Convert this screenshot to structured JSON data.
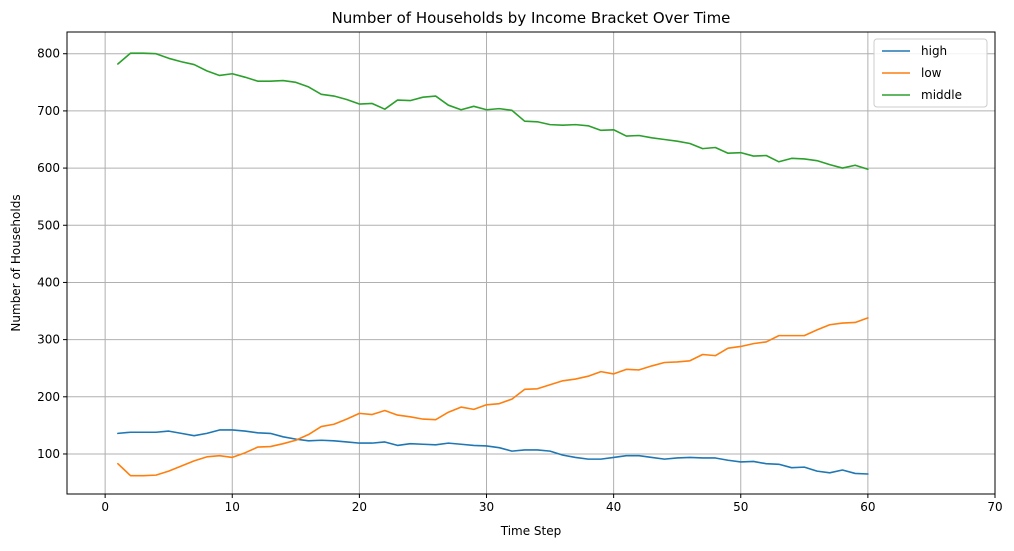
{
  "chart_data": {
    "type": "line",
    "title": "Number of Households by Income Bracket Over Time",
    "xlabel": "Time Step",
    "ylabel": "Number of Households",
    "xlim": [
      -3,
      70
    ],
    "ylim": [
      30,
      838
    ],
    "xticks": [
      0,
      10,
      20,
      30,
      40,
      50,
      60,
      70
    ],
    "yticks": [
      100,
      200,
      300,
      400,
      500,
      600,
      700,
      800
    ],
    "grid": true,
    "legend": "top-right",
    "x": [
      1,
      2,
      3,
      4,
      5,
      6,
      7,
      8,
      9,
      10,
      11,
      12,
      13,
      14,
      15,
      16,
      17,
      18,
      19,
      20,
      21,
      22,
      23,
      24,
      25,
      26,
      27,
      28,
      29,
      30,
      31,
      32,
      33,
      34,
      35,
      36,
      37,
      38,
      39,
      40,
      41,
      42,
      43,
      44,
      45,
      46,
      47,
      48,
      49,
      50,
      51,
      52,
      53,
      54,
      55,
      56,
      57,
      58,
      59,
      60
    ],
    "series": [
      {
        "name": "high",
        "color": "#1f77b4",
        "values": [
          136,
          138,
          138,
          138,
          140,
          136,
          132,
          136,
          142,
          142,
          140,
          137,
          136,
          130,
          126,
          123,
          124,
          123,
          121,
          119,
          119,
          121,
          115,
          118,
          117,
          116,
          119,
          117,
          115,
          114,
          111,
          105,
          107,
          107,
          105,
          98,
          94,
          91,
          91,
          94,
          97,
          97,
          94,
          91,
          93,
          94,
          93,
          93,
          89,
          86,
          87,
          83,
          82,
          76,
          77,
          70,
          67,
          72,
          66,
          65
        ]
      },
      {
        "name": "low",
        "color": "#ff7f0e",
        "values": [
          83,
          62,
          62,
          63,
          70,
          79,
          88,
          95,
          97,
          94,
          102,
          112,
          113,
          118,
          124,
          134,
          148,
          152,
          161,
          171,
          169,
          176,
          168,
          165,
          161,
          160,
          173,
          182,
          178,
          186,
          188,
          196,
          213,
          214,
          221,
          228,
          231,
          236,
          244,
          240,
          248,
          247,
          254,
          260,
          261,
          263,
          274,
          272,
          285,
          288,
          293,
          296,
          307,
          307,
          307,
          317,
          326,
          329,
          330,
          338
        ]
      },
      {
        "name": "middle",
        "color": "#2ca02c",
        "values": [
          782,
          801,
          801,
          800,
          792,
          786,
          781,
          770,
          762,
          765,
          759,
          752,
          752,
          753,
          750,
          742,
          729,
          726,
          720,
          712,
          713,
          703,
          719,
          718,
          724,
          726,
          710,
          702,
          708,
          702,
          704,
          701,
          682,
          681,
          676,
          675,
          676,
          674,
          666,
          667,
          656,
          657,
          653,
          650,
          647,
          643,
          634,
          636,
          626,
          627,
          621,
          622,
          611,
          617,
          616,
          613,
          606,
          600,
          605,
          598
        ]
      }
    ]
  }
}
